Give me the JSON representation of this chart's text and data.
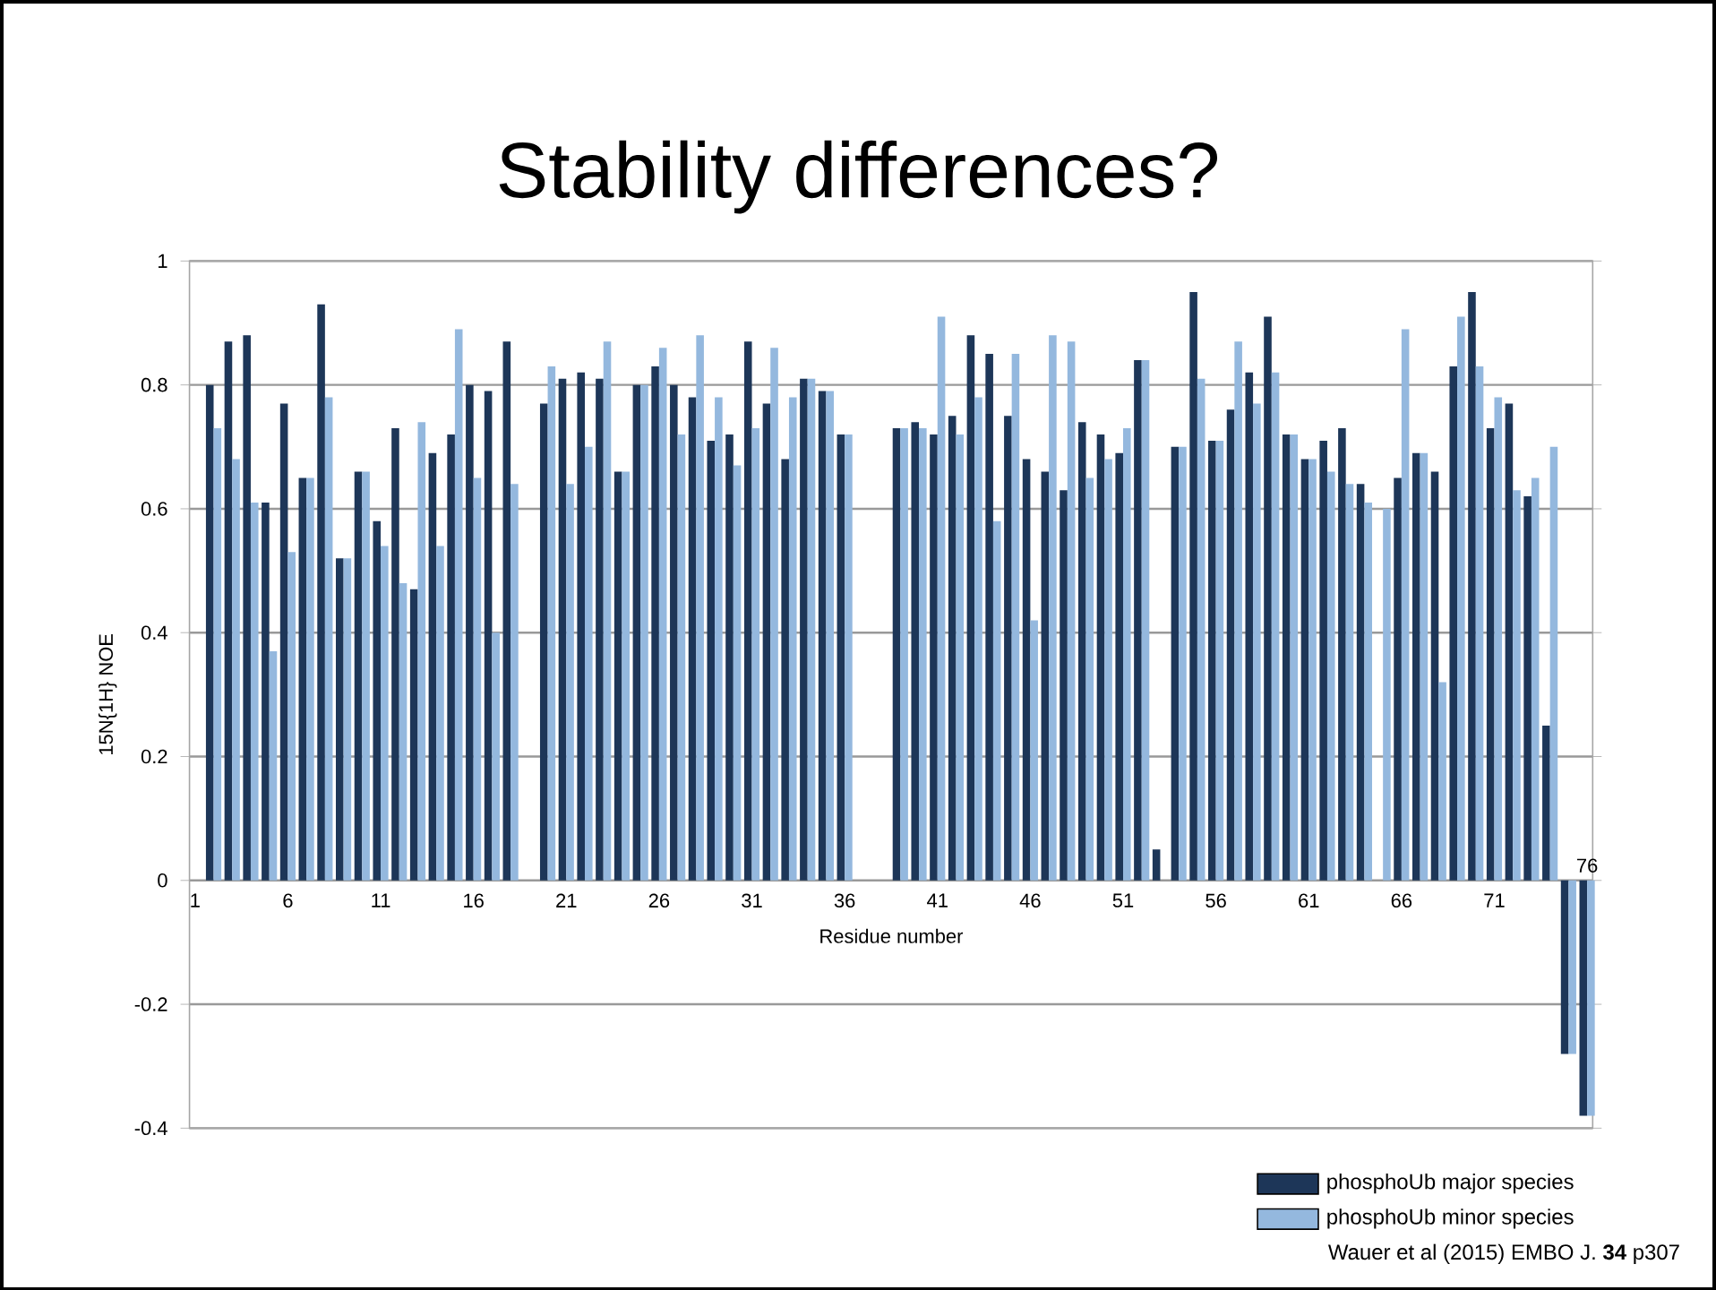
{
  "chart_data": {
    "type": "bar",
    "title": "Stability differences?",
    "xlabel": "Residue number",
    "ylabel": "15N{1H} NOE",
    "categories": [
      "1",
      null,
      null,
      null,
      null,
      "6",
      null,
      null,
      null,
      null,
      "11",
      null,
      null,
      null,
      null,
      "16",
      null,
      null,
      null,
      null,
      "21",
      null,
      null,
      null,
      null,
      "26",
      null,
      null,
      null,
      null,
      "31",
      null,
      null,
      null,
      null,
      "36",
      null,
      null,
      null,
      null,
      "41",
      null,
      null,
      null,
      null,
      "46",
      null,
      null,
      null,
      null,
      "51",
      null,
      null,
      null,
      null,
      "56",
      null,
      null,
      null,
      null,
      "61",
      null,
      null,
      null,
      null,
      "66",
      null,
      null,
      null,
      null,
      "71",
      null,
      null,
      null,
      null,
      "76"
    ],
    "series": [
      {
        "name": "phosphoUb major species",
        "color": "#1d3658",
        "values": [
          null,
          0.8,
          0.87,
          0.88,
          0.61,
          0.77,
          0.65,
          0.93,
          0.52,
          0.66,
          0.58,
          0.73,
          0.47,
          0.69,
          0.72,
          0.8,
          0.79,
          0.87,
          null,
          0.77,
          0.81,
          0.82,
          0.81,
          0.66,
          0.8,
          0.83,
          0.8,
          0.78,
          0.71,
          0.72,
          0.87,
          0.77,
          0.68,
          0.81,
          0.79,
          0.72,
          null,
          null,
          0.73,
          0.74,
          0.72,
          0.75,
          0.88,
          0.85,
          0.75,
          0.68,
          0.66,
          0.63,
          0.74,
          0.72,
          0.69,
          0.84,
          0.05,
          0.7,
          0.95,
          0.71,
          0.76,
          0.82,
          0.91,
          0.72,
          0.68,
          0.71,
          0.73,
          0.64,
          null,
          0.65,
          0.69,
          0.66,
          0.83,
          0.95,
          0.73,
          0.77,
          0.62,
          0.25,
          -0.28,
          -0.38
        ]
      },
      {
        "name": "phosphoUb minor species",
        "color": "#94b8de",
        "values": [
          null,
          0.73,
          0.68,
          0.61,
          0.37,
          0.53,
          0.65,
          0.78,
          0.52,
          0.66,
          0.54,
          0.48,
          0.74,
          0.54,
          0.89,
          0.65,
          0.4,
          0.64,
          null,
          0.83,
          0.64,
          0.7,
          0.87,
          0.66,
          0.8,
          0.86,
          0.72,
          0.88,
          0.78,
          0.67,
          0.73,
          0.86,
          0.78,
          0.81,
          0.79,
          0.72,
          null,
          null,
          0.73,
          0.73,
          0.91,
          0.72,
          0.78,
          0.58,
          0.85,
          0.42,
          0.88,
          0.87,
          0.65,
          0.68,
          0.73,
          0.84,
          null,
          0.7,
          0.81,
          0.71,
          0.87,
          0.77,
          0.82,
          0.72,
          0.68,
          0.66,
          0.64,
          0.61,
          0.6,
          0.89,
          0.69,
          0.32,
          0.91,
          0.83,
          0.78,
          0.63,
          0.65,
          0.7,
          -0.28,
          -0.38
        ]
      }
    ],
    "ylim": [
      -0.4,
      1
    ],
    "yticks": [
      -0.4,
      -0.2,
      0,
      0.2,
      0.4,
      0.6,
      0.8,
      1
    ],
    "grid": "y",
    "legend": "bottom right",
    "annotations": [
      "Wauer et al (2015) EMBO J. **34** p307"
    ]
  }
}
